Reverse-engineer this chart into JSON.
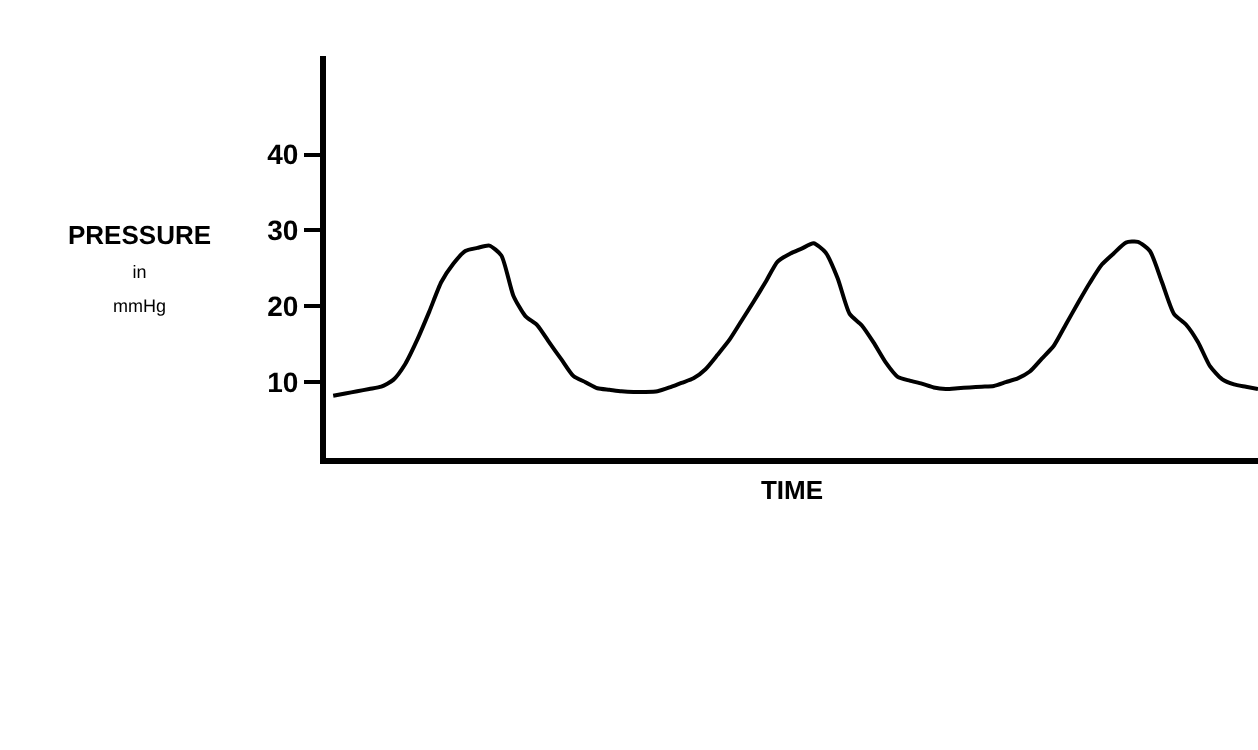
{
  "chart_data": {
    "type": "line",
    "xlabel": "TIME",
    "ylabel": "PRESSURE\nin\nmmHg",
    "categories": [
      null,
      null,
      null,
      null,
      null,
      null,
      null,
      null,
      null,
      null,
      null,
      null,
      null,
      null,
      null,
      null,
      null,
      null,
      null,
      null,
      null,
      null,
      null,
      null,
      null,
      null,
      null,
      null,
      null,
      null,
      null,
      null,
      null,
      null,
      null,
      null,
      null,
      null,
      null,
      null,
      null,
      null,
      null,
      null,
      null,
      null,
      null,
      null,
      null,
      null,
      null,
      null,
      null,
      null,
      null,
      null,
      null,
      null,
      null,
      null,
      null,
      null,
      null,
      null,
      null,
      null,
      null,
      null,
      null,
      null,
      null,
      null,
      null,
      null,
      null,
      null,
      null,
      null
    ],
    "series": [
      {
        "color": "#000000",
        "values": [
          8.2,
          8.5,
          8.8,
          9.1,
          9.4,
          10.3,
          12.4,
          15.6,
          19.3,
          23.2,
          25.6,
          27.3,
          27.7,
          28.0,
          26.7,
          21.4,
          18.7,
          17.5,
          15.2,
          13.0,
          10.8,
          10.0,
          9.2,
          9.0,
          8.8,
          8.7,
          8.7,
          8.8,
          9.3,
          9.9,
          10.5,
          11.7,
          13.6,
          15.6,
          18.1,
          20.6,
          23.2,
          25.9,
          26.9,
          27.6,
          28.3,
          27.1,
          23.7,
          19.0,
          17.5,
          15.2,
          12.6,
          10.7,
          10.2,
          9.8,
          9.3,
          9.1,
          9.2,
          9.3,
          9.4,
          9.5,
          10.0,
          10.5,
          11.4,
          13.1,
          14.8,
          17.6,
          20.4,
          23.1,
          25.5,
          27.0,
          28.4,
          28.5,
          27.3,
          23.2,
          19.0,
          17.6,
          15.3,
          12.1,
          10.4,
          9.7,
          9.4,
          9.1
        ]
      }
    ],
    "ylim": [
      0,
      53
    ],
    "yticks": [
      10,
      20,
      30,
      40
    ],
    "tick_labels": "y",
    "marker": "none",
    "line_style": "solid"
  }
}
